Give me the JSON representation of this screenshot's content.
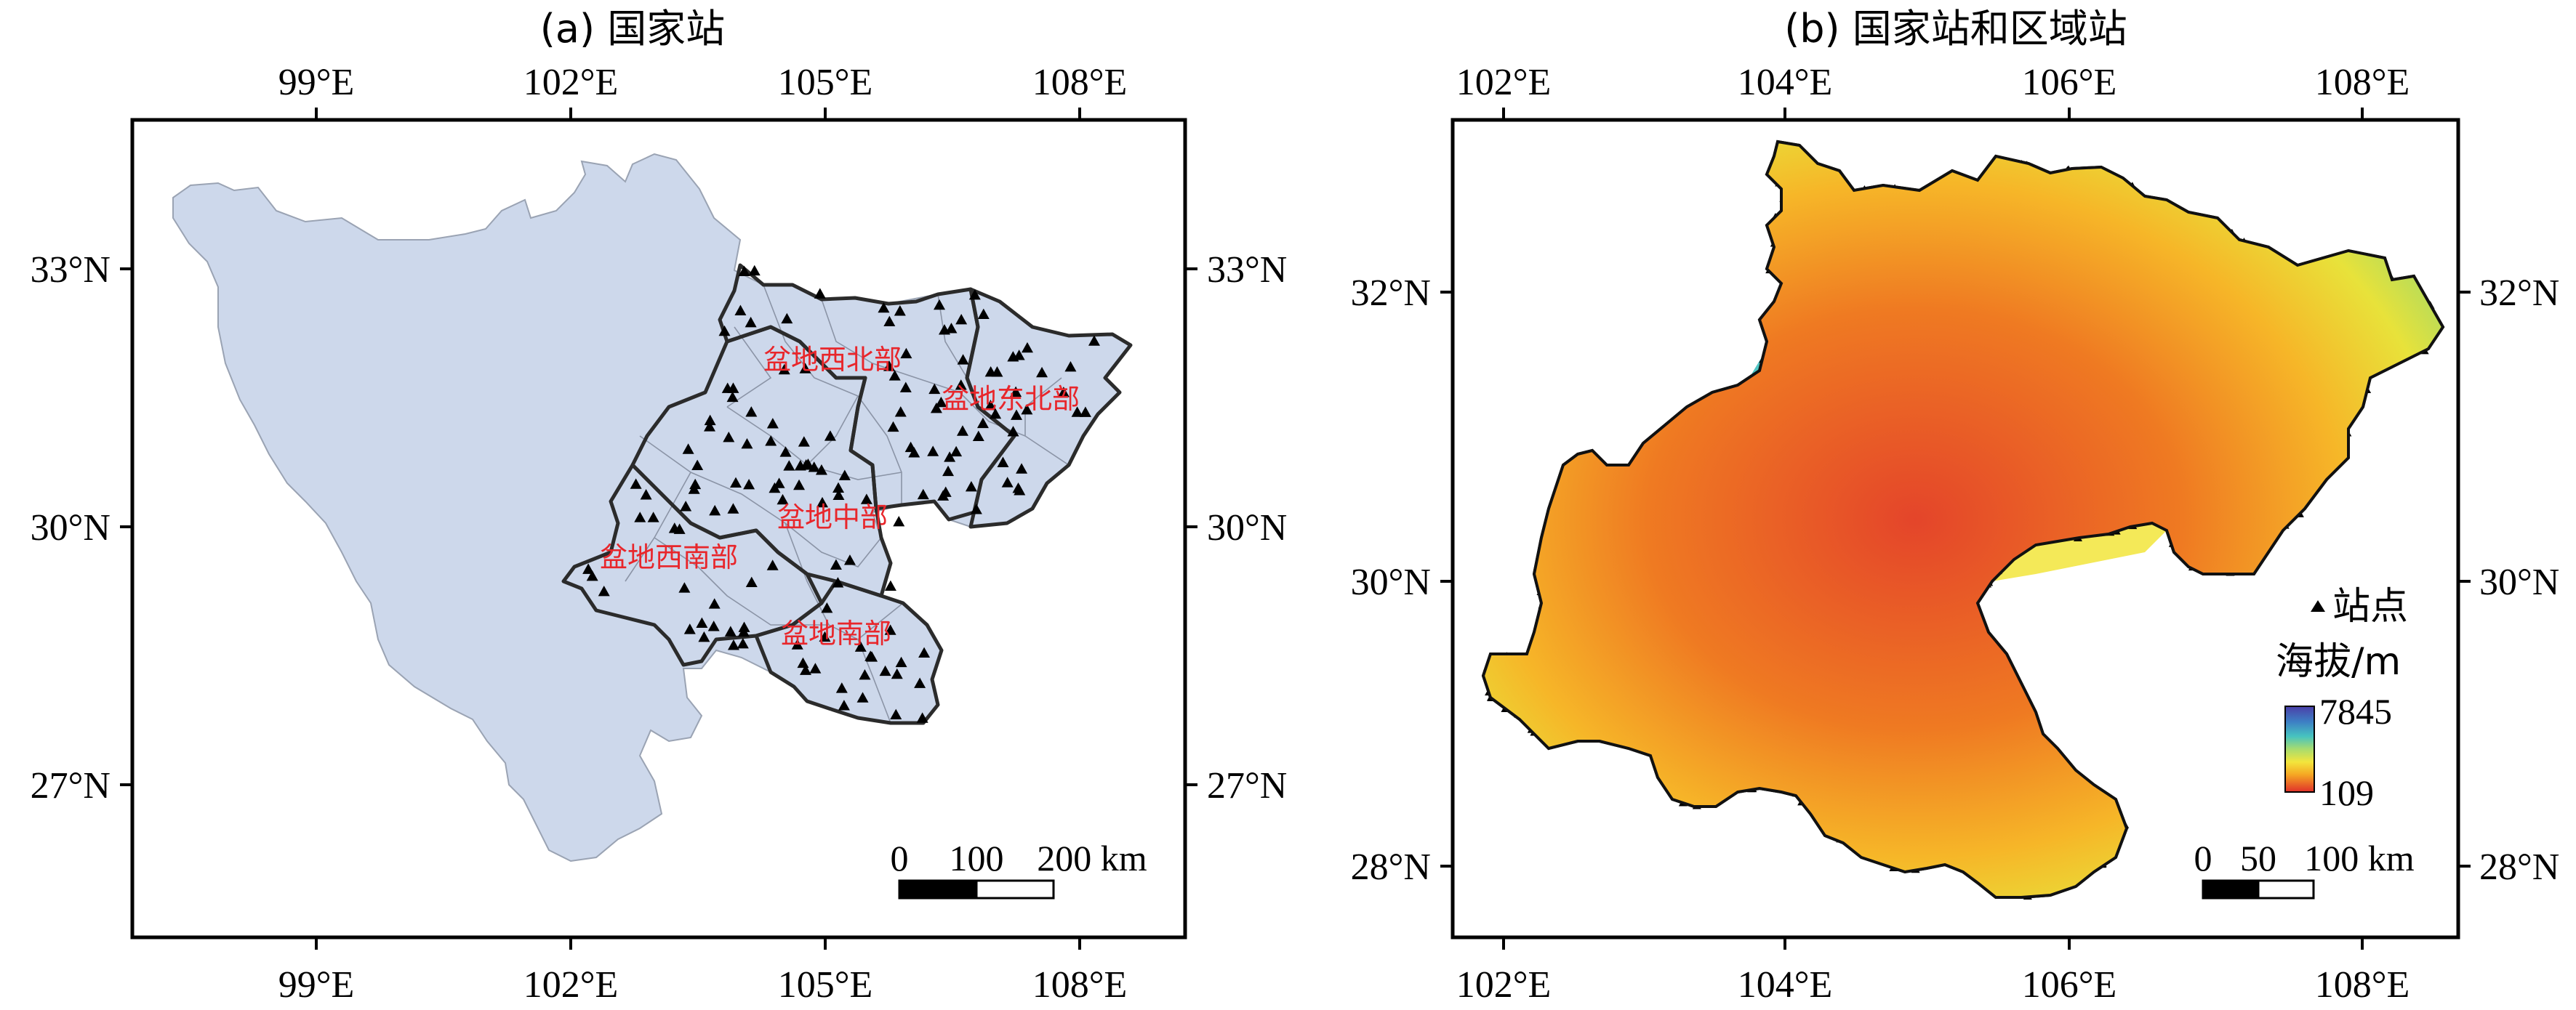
{
  "panels": [
    {
      "id": "a",
      "title": "(a) 国家站",
      "x_ticks_top": [
        "99°E",
        "102°E",
        "105°E",
        "108°E"
      ],
      "x_ticks_bottom": [
        "99°E",
        "102°E",
        "105°E",
        "108°E"
      ],
      "y_ticks_left": [
        "33°N",
        "30°N",
        "27°N"
      ],
      "y_ticks_right": [
        "33°N",
        "30°N",
        "27°N"
      ],
      "regions": [
        "盆地西北部",
        "盆地东北部",
        "盆地中部",
        "盆地西南部",
        "盆地南部"
      ],
      "scale_bar": [
        "0",
        "100",
        "200 km"
      ]
    },
    {
      "id": "b",
      "title": "(b) 国家站和区域站",
      "x_ticks_top": [
        "102°E",
        "104°E",
        "106°E",
        "108°E"
      ],
      "x_ticks_bottom": [
        "102°E",
        "104°E",
        "106°E",
        "108°E"
      ],
      "y_ticks_left": [
        "32°N",
        "30°N",
        "28°N"
      ],
      "y_ticks_right": [
        "32°N",
        "30°N",
        "28°N"
      ],
      "legend": {
        "station_label": "站点",
        "elevation_label": "海拔/m",
        "max": "7845",
        "min": "109"
      },
      "scale_bar": [
        "0",
        "50",
        "100 km"
      ]
    }
  ],
  "colors": {
    "province_fill": "#cdd8eb",
    "region_label": "#e8262b",
    "elevation_ramp": [
      "#4b3fa8",
      "#3d7fc4",
      "#46c3c0",
      "#a8dc6e",
      "#f3e53c",
      "#f5a623",
      "#ef6b1f",
      "#e0302a"
    ]
  }
}
